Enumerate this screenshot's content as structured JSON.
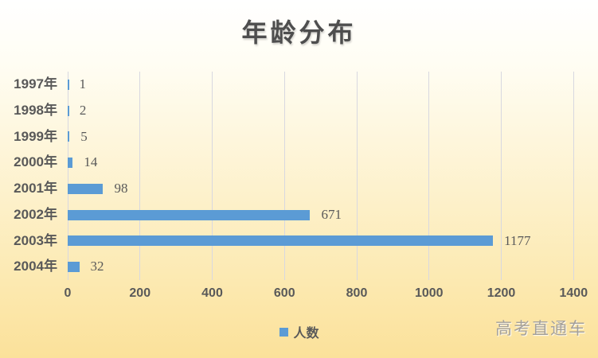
{
  "page": {
    "watermark": "高考直通车"
  },
  "chart_data": {
    "type": "bar",
    "orientation": "horizontal",
    "title": "年龄分布",
    "categories": [
      "1997年",
      "1998年",
      "1999年",
      "2000年",
      "2001年",
      "2002年",
      "2003年",
      "2004年"
    ],
    "values": [
      1,
      2,
      5,
      14,
      98,
      671,
      1177,
      32
    ],
    "xlabel": "",
    "ylabel": "",
    "xlim": [
      0,
      1400
    ],
    "x_ticks": [
      0,
      200,
      400,
      600,
      800,
      1000,
      1200,
      1400
    ],
    "grid": true,
    "legend_label": "人数",
    "legend_position": "bottom",
    "colors": {
      "bar": "#5B9BD5",
      "label_text": "#595959",
      "gridline": "#D8D8E0",
      "watermark": "#A4A09A",
      "bg_top": "#FFFFFF",
      "bg_bottom": "#FBE19A"
    }
  }
}
